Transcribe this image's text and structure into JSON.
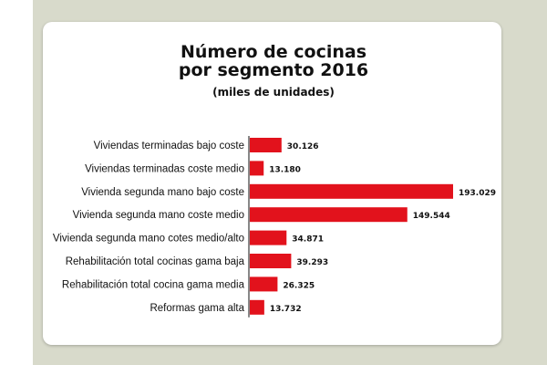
{
  "colors": {
    "bar": "#e2121c",
    "background": "#d8dacb",
    "card": "#ffffff"
  },
  "chart_data": {
    "type": "bar",
    "orientation": "horizontal",
    "title_line1": "Número de cocinas",
    "title_line2": "por segmento 2016",
    "subtitle": "(miles de unidades)",
    "categories": [
      "Viviendas terminadas bajo coste",
      "Viviendas terminadas coste medio",
      "Vivienda segunda mano bajo coste",
      "Vivienda segunda mano coste medio",
      "Vivienda segunda mano cotes medio/alto",
      "Rehabilitación total cocinas gama baja",
      "Rehabilitación total cocina gama media",
      "Reformas gama alta"
    ],
    "values": [
      30126,
      13180,
      193029,
      149544,
      34871,
      39293,
      26325,
      13732
    ],
    "value_labels": [
      "30.126",
      "13.180",
      "193.029",
      "149.544",
      "34.871",
      "39.293",
      "26.325",
      "13.732"
    ],
    "xlim": [
      0,
      193029
    ],
    "xlabel": "",
    "ylabel": "",
    "grid": false
  }
}
